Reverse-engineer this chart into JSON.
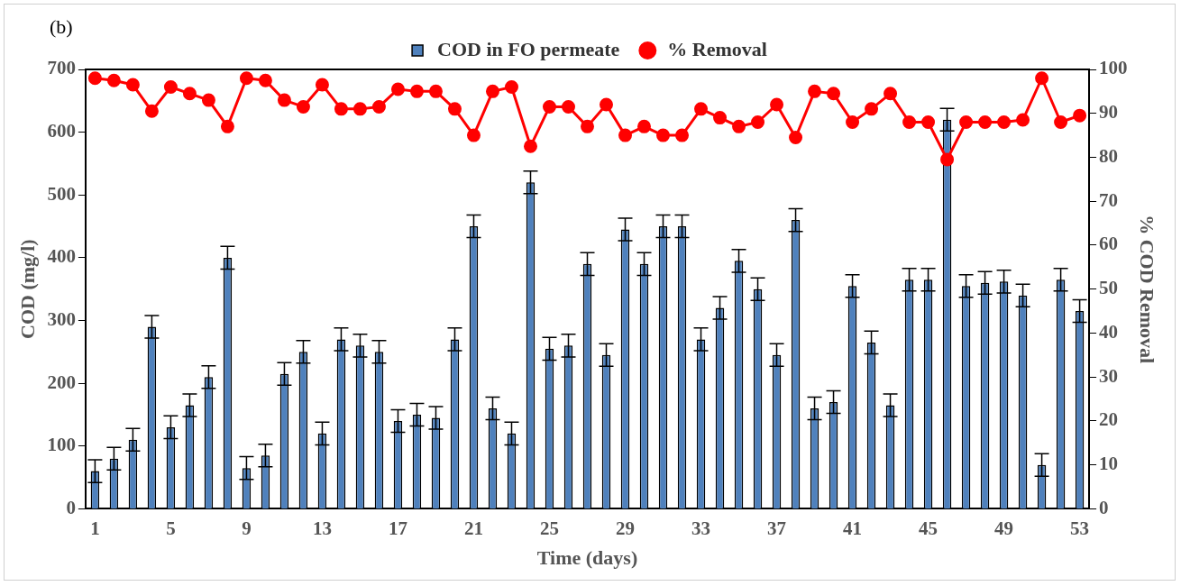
{
  "chart_data": {
    "type": "bar",
    "xlabel": "Time (days)",
    "ylabel": "COD (mg/l)",
    "y2label": "% COD Removal",
    "annotations": [
      "(b)"
    ],
    "categories": [
      "1",
      null,
      null,
      null,
      "5",
      null,
      null,
      null,
      "9",
      null,
      null,
      null,
      "13",
      null,
      null,
      null,
      "17",
      null,
      null,
      null,
      "21",
      null,
      null,
      null,
      "25",
      null,
      null,
      null,
      "29",
      null,
      null,
      null,
      "33",
      null,
      null,
      null,
      "37",
      null,
      null,
      null,
      "41",
      null,
      null,
      null,
      "45",
      null,
      null,
      null,
      "49",
      null,
      null,
      null,
      "53"
    ],
    "series": [
      {
        "name": "COD in FO permeate",
        "color": "#4f81bd",
        "values": [
          60,
          80,
          110,
          290,
          130,
          165,
          210,
          400,
          65,
          85,
          215,
          250,
          120,
          270,
          260,
          250,
          140,
          150,
          145,
          270,
          450,
          160,
          120,
          520,
          255,
          260,
          390,
          245,
          445,
          390,
          450,
          450,
          270,
          320,
          395,
          350,
          245,
          460,
          160,
          170,
          355,
          265,
          165,
          365,
          365,
          620,
          355,
          360,
          362,
          340,
          70,
          365,
          315
        ],
        "errors": [
          18,
          18,
          18,
          18,
          18,
          18,
          18,
          18,
          18,
          18,
          18,
          18,
          18,
          18,
          18,
          18,
          18,
          18,
          18,
          18,
          18,
          18,
          18,
          18,
          18,
          18,
          18,
          18,
          18,
          18,
          18,
          18,
          18,
          18,
          18,
          18,
          18,
          18,
          18,
          18,
          18,
          18,
          18,
          18,
          18,
          18,
          18,
          18,
          18,
          18,
          18,
          18,
          18
        ]
      },
      {
        "name": "% Removal",
        "type": "line",
        "axis": "y2",
        "color": "#ff0000",
        "marker": "circle",
        "values": [
          98,
          97.5,
          96.5,
          90.5,
          96,
          94.5,
          93,
          87,
          98,
          97.5,
          93,
          91.5,
          96.5,
          91,
          91,
          91.5,
          95.5,
          95,
          95,
          91,
          85,
          95,
          96,
          82.5,
          91.5,
          91.5,
          87,
          92,
          85,
          87,
          85,
          85,
          91,
          89,
          87,
          88,
          92,
          84.5,
          95,
          94.5,
          88,
          91,
          94.5,
          88,
          88,
          79.5,
          88,
          88,
          88,
          88.5,
          98,
          88,
          89.5
        ]
      }
    ],
    "ylim": [
      0,
      700
    ],
    "yticks": [
      0,
      100,
      200,
      300,
      400,
      500,
      600,
      700
    ],
    "y2lim": [
      0,
      100
    ],
    "y2ticks": [
      0,
      10,
      20,
      30,
      40,
      50,
      60,
      70,
      80,
      90,
      100
    ],
    "grid": false,
    "legend": "top"
  }
}
